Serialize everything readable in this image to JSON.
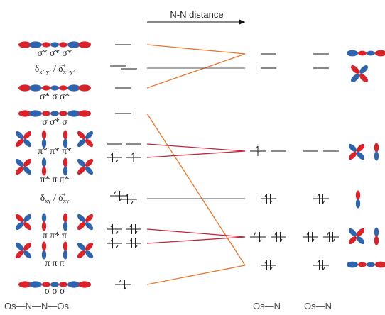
{
  "header": {
    "arrow_label": "N-N distance"
  },
  "colors": {
    "orbital_red": "#d8232a",
    "orbital_blue": "#2f64ad",
    "level": "#444444",
    "orange": "#e8762d",
    "crimson": "#c2243a"
  },
  "row_labels": {
    "r1": "σ* σ* σ*",
    "r2_main": "δ",
    "r2_sub": "x²-y²",
    "r2_sep": " / δ",
    "r2_sup": "*",
    "r2_sub2": "x²-y²",
    "r3": "σ* σ  σ*",
    "r4": "σ  σ* σ",
    "r5": "π* π* π*",
    "r6": "π* π  π*",
    "r7_main": "δ",
    "r7_sub": "xy",
    "r7_sep": " / δ",
    "r7_sup": "*",
    "r7_sub2": "xy",
    "r8": "π  π* π",
    "r9": "π  π  π",
    "r10": "σ  σ  σ"
  },
  "bottom_labels": {
    "chain": "Os—N—N—Os",
    "mid": "Os—N",
    "right": "Os—N"
  },
  "icons": [
    "sigma-orbital-icon",
    "pi-orbital-icon",
    "delta-orbital-icon",
    "electron-pair-icon",
    "single-electron-icon"
  ]
}
